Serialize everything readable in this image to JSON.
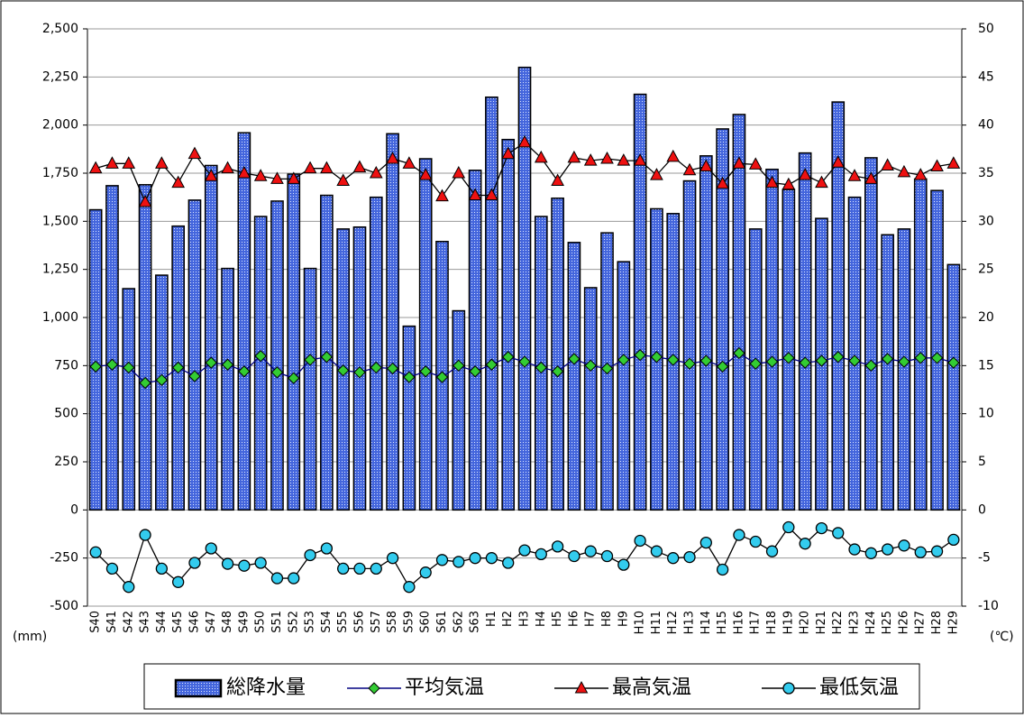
{
  "chart_data": {
    "type": "bar_line",
    "categories": [
      "S40",
      "S41",
      "S42",
      "S43",
      "S44",
      "S45",
      "S46",
      "S47",
      "S48",
      "S49",
      "S50",
      "S51",
      "S52",
      "S53",
      "S54",
      "S55",
      "S56",
      "S57",
      "S58",
      "S59",
      "S60",
      "S61",
      "S62",
      "S63",
      "H1",
      "H2",
      "H3",
      "H4",
      "H5",
      "H6",
      "H7",
      "H8",
      "H9",
      "H10",
      "H11",
      "H12",
      "H13",
      "H14",
      "H15",
      "H16",
      "H17",
      "H18",
      "H19",
      "H20",
      "H21",
      "H22",
      "H23",
      "H24",
      "H25",
      "H26",
      "H27",
      "H28",
      "H29"
    ],
    "y_label": "(mm)",
    "y2_label": "(℃)",
    "ylim": [
      -500,
      2500
    ],
    "yticks": [
      -500,
      -250,
      0,
      250,
      500,
      750,
      {
        "value": 1000,
        "label": "1,000"
      },
      {
        "value": 1250,
        "label": "1,250"
      },
      {
        "value": 1500,
        "label": "1,500"
      },
      {
        "value": 1750,
        "label": "1,750"
      },
      {
        "value": 2000,
        "label": "2,000"
      },
      {
        "value": 2250,
        "label": "2,250"
      },
      {
        "value": 2500,
        "label": "2,500"
      }
    ],
    "y2lim": [
      -10,
      50
    ],
    "y2ticks": [
      -10,
      -5,
      0,
      5,
      10,
      15,
      20,
      25,
      30,
      35,
      40,
      45,
      50
    ],
    "grid": true,
    "series": [
      {
        "name": "総降水量",
        "kind": "bar",
        "color": "#4466dd",
        "values": [
          1560,
          1685,
          1150,
          1690,
          1220,
          1475,
          1610,
          1790,
          1255,
          1960,
          1525,
          1605,
          1745,
          1255,
          1635,
          1460,
          1470,
          1625,
          1955,
          955,
          1825,
          1395,
          1035,
          1765,
          2145,
          1925,
          2300,
          1525,
          1620,
          1390,
          1155,
          1440,
          1290,
          2160,
          1565,
          1540,
          1710,
          1840,
          1980,
          2055,
          1460,
          1770,
          1665,
          1855,
          1515,
          2120,
          1625,
          1830,
          1430,
          1460,
          1720,
          1660,
          1275
        ]
      },
      {
        "name": "平均気温",
        "kind": "line",
        "axis": "y2",
        "color": "#33cc33",
        "line_color": "#000080",
        "marker": "diamond",
        "values": [
          14.9,
          15.1,
          14.8,
          13.2,
          13.5,
          14.8,
          13.9,
          15.3,
          15.1,
          14.4,
          16.0,
          14.3,
          13.7,
          15.6,
          15.9,
          14.5,
          14.3,
          14.8,
          14.7,
          13.8,
          14.4,
          13.8,
          15.0,
          14.4,
          15.1,
          15.9,
          15.4,
          14.8,
          14.4,
          15.7,
          15.0,
          14.7,
          15.6,
          16.1,
          15.9,
          15.6,
          15.2,
          15.5,
          14.9,
          16.3,
          15.2,
          15.4,
          15.8,
          15.3,
          15.5,
          15.9,
          15.5,
          15.0,
          15.7,
          15.4,
          15.8,
          15.8,
          15.3
        ]
      },
      {
        "name": "最高気温",
        "kind": "line",
        "axis": "y2",
        "color": "#ee1111",
        "line_color": "#000000",
        "marker": "triangle",
        "values": [
          35.5,
          36.0,
          36.0,
          32.0,
          36.0,
          34.0,
          37.0,
          34.7,
          35.5,
          35.0,
          34.7,
          34.4,
          34.4,
          35.5,
          35.5,
          34.2,
          35.6,
          35.0,
          36.5,
          36.0,
          34.8,
          32.6,
          35.0,
          32.7,
          32.7,
          37.0,
          38.2,
          36.6,
          34.2,
          36.6,
          36.3,
          36.5,
          36.3,
          36.3,
          34.8,
          36.7,
          35.3,
          35.7,
          33.9,
          36.0,
          35.9,
          34.0,
          33.8,
          34.8,
          34.0,
          36.1,
          34.7,
          34.4,
          35.8,
          35.1,
          34.8,
          35.7,
          36.0
        ]
      },
      {
        "name": "最低気温",
        "kind": "line",
        "axis": "y2",
        "color": "#33ccee",
        "line_color": "#000000",
        "marker": "circle",
        "values": [
          -4.4,
          -6.1,
          -8.0,
          -2.6,
          -6.1,
          -7.5,
          -5.5,
          -4.0,
          -5.6,
          -5.8,
          -5.5,
          -7.1,
          -7.1,
          -4.7,
          -4.0,
          -6.1,
          -6.1,
          -6.1,
          -5.0,
          -8.0,
          -6.5,
          -5.2,
          -5.4,
          -5.0,
          -5.0,
          -5.5,
          -4.2,
          -4.6,
          -3.8,
          -4.8,
          -4.3,
          -4.8,
          -5.7,
          -3.2,
          -4.3,
          -5.0,
          -4.9,
          -3.4,
          -6.2,
          -2.6,
          -3.3,
          -4.3,
          -1.8,
          -3.5,
          -1.9,
          -2.4,
          -4.1,
          -4.5,
          -4.1,
          -3.7,
          -4.4,
          -4.3,
          -3.1
        ]
      }
    ]
  }
}
